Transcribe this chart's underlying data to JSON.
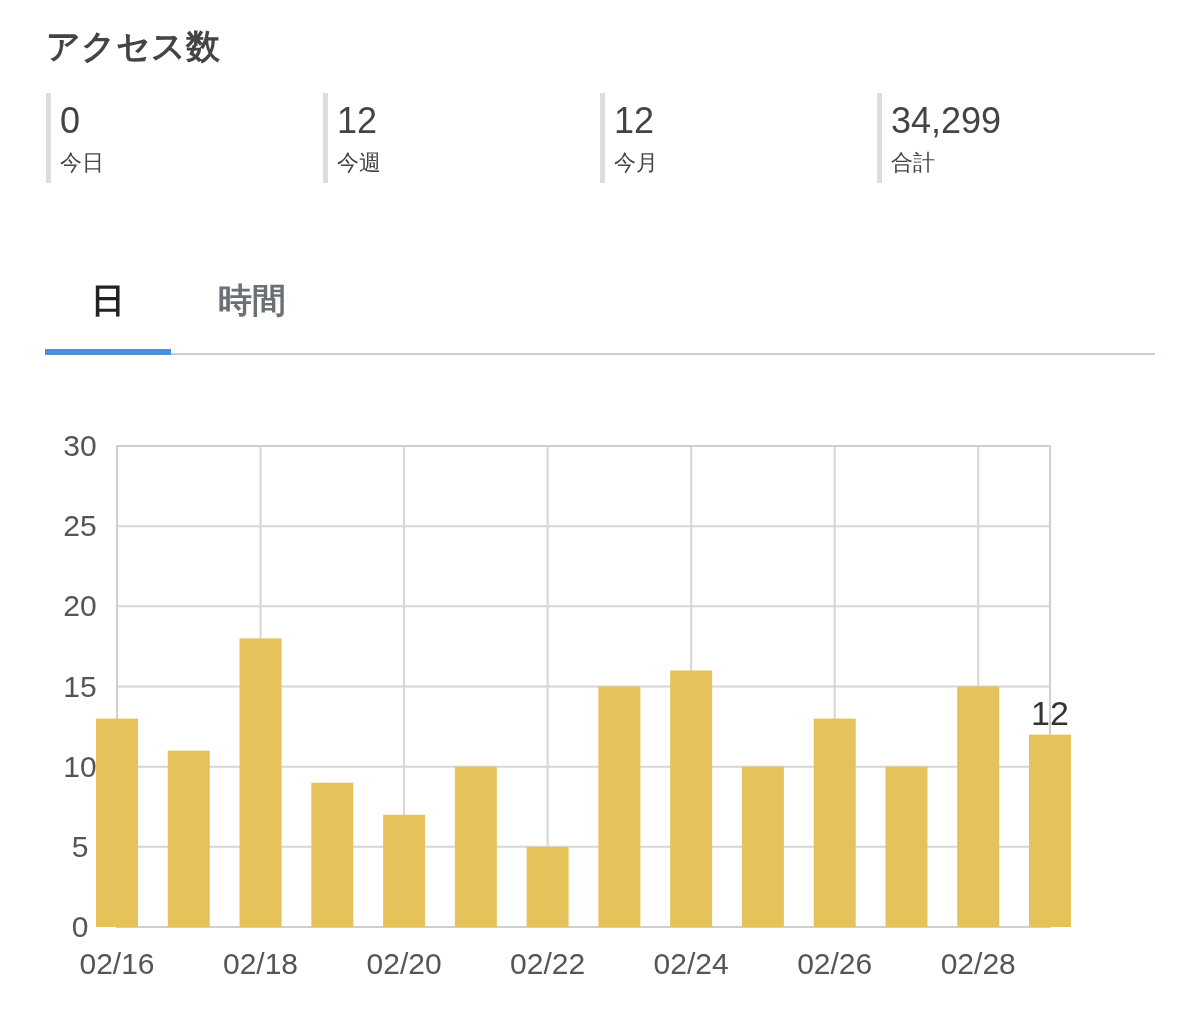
{
  "chart_data": [
    {
      "type": "other",
      "title": "アクセス数",
      "annotations": [
        "0",
        "今日",
        "12",
        "今週",
        "12",
        "今月",
        "34,299",
        "合計",
        "日",
        "時間"
      ]
    },
    {
      "type": "bar",
      "categories": [
        "02/16",
        null,
        "02/18",
        null,
        "02/20",
        null,
        "02/22",
        null,
        "02/24",
        null,
        "02/26",
        null,
        "02/28",
        null
      ],
      "values": [
        13,
        11,
        18,
        9,
        7,
        10,
        5,
        15,
        16,
        10,
        13,
        10,
        15,
        12
      ],
      "value_labels": [
        null,
        null,
        null,
        null,
        null,
        null,
        null,
        null,
        null,
        null,
        null,
        null,
        null,
        "12"
      ],
      "color": "#e5c35a",
      "ylim": [
        0,
        30
      ],
      "yticks": [
        0,
        5,
        10,
        15,
        20,
        25,
        30
      ],
      "grid": true
    }
  ]
}
